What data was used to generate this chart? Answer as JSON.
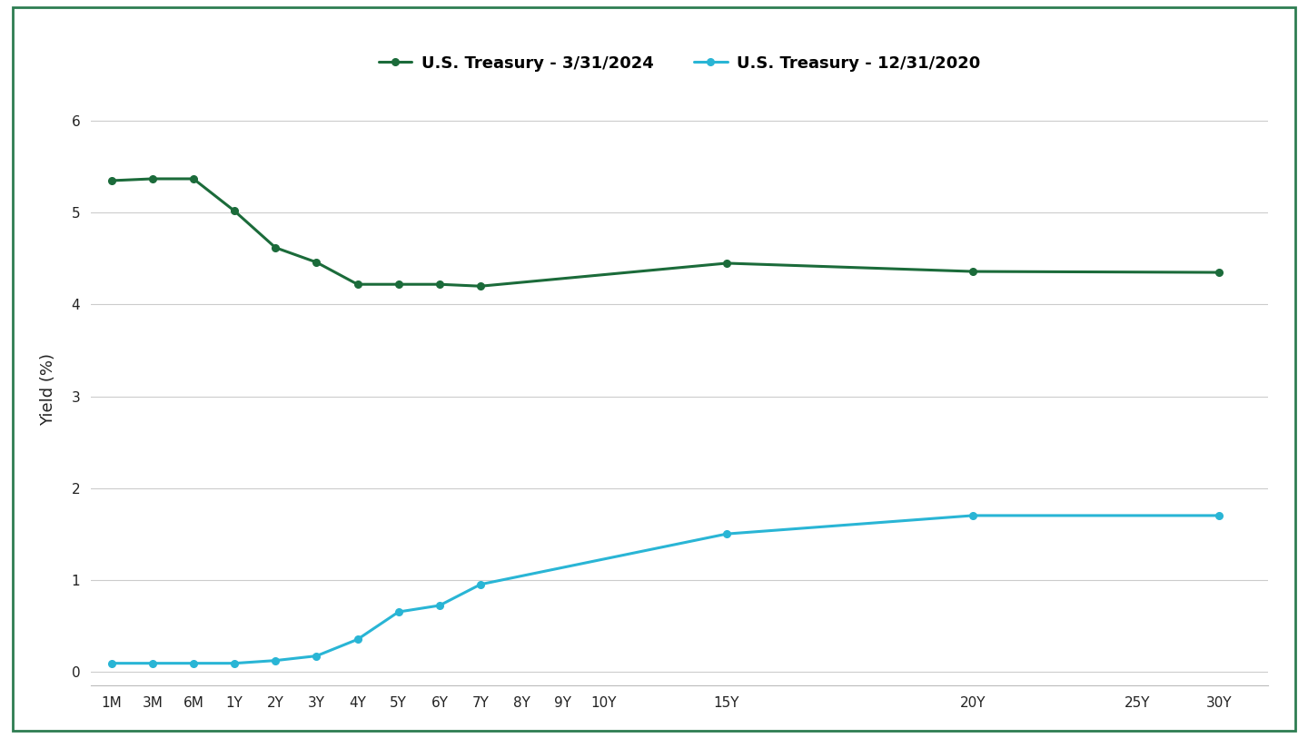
{
  "series1_x": [
    0,
    1,
    2,
    3,
    4,
    5,
    6,
    7,
    8,
    9,
    15,
    21,
    27
  ],
  "series1_y": [
    5.35,
    5.37,
    5.37,
    5.02,
    4.62,
    4.46,
    4.22,
    4.22,
    4.22,
    4.2,
    4.45,
    4.36,
    4.35
  ],
  "series2_x": [
    0,
    1,
    2,
    3,
    4,
    5,
    6,
    7,
    8,
    9,
    15,
    21,
    27
  ],
  "series2_y": [
    0.09,
    0.09,
    0.09,
    0.09,
    0.12,
    0.17,
    0.35,
    0.65,
    0.72,
    0.95,
    1.5,
    1.7,
    1.7
  ],
  "color_2024": "#1b6b3a",
  "color_2020": "#29b5d5",
  "label_2024": "U.S. Treasury - 3/31/2024",
  "label_2020": "U.S. Treasury - 12/31/2020",
  "ylabel": "Yield (%)",
  "ylim": [
    -0.15,
    6.3
  ],
  "yticks": [
    0,
    1,
    2,
    3,
    4,
    5,
    6
  ],
  "background_color": "#ffffff",
  "grid_color": "#cccccc",
  "tick_positions": [
    0,
    1,
    2,
    3,
    4,
    5,
    6,
    7,
    8,
    9,
    10,
    11,
    12,
    15,
    21,
    25,
    27
  ],
  "tick_labels": [
    "1M",
    "3M",
    "6M",
    "1Y",
    "2Y",
    "3Y",
    "4Y",
    "5Y",
    "6Y",
    "7Y",
    "8Y",
    "9Y",
    "10Y",
    "15Y",
    "20Y",
    "25Y",
    "30Y"
  ],
  "border_color": "#2e7d52"
}
